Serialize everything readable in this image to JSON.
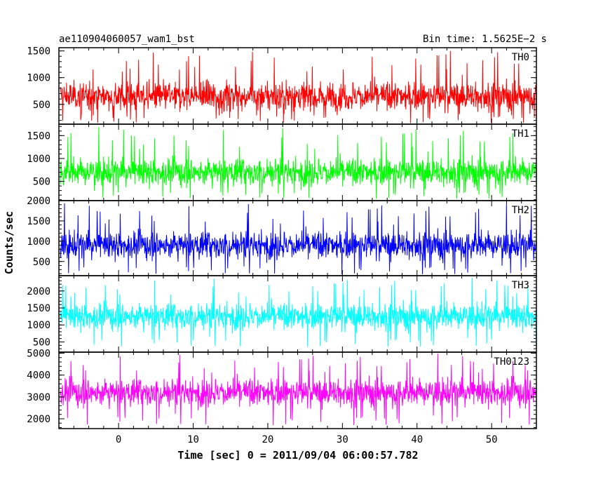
{
  "header": {
    "title": "ae110904060057_wam1_bst",
    "bin_time": "Bin time: 1.5625E−2 s"
  },
  "chart_data": {
    "type": "line",
    "title": "ae110904060057_wam1_bst",
    "xlabel": "Time [sec] 0 = 2011/09/04 06:00:57.782",
    "ylabel": "Counts/sec",
    "xlim": [
      -8,
      56
    ],
    "x_ticks": [
      0,
      10,
      20,
      30,
      40,
      50
    ],
    "x_tick_labels": [
      "0",
      "10",
      "20",
      "30",
      "40",
      "50"
    ],
    "x_data_range": [
      -7.8,
      56.0
    ],
    "grid": false,
    "panels": [
      {
        "name": "TH0",
        "color": "#ff0000",
        "ylim": [
          130,
          1560
        ],
        "y_ticks": [
          500,
          1000,
          1500
        ],
        "y_tick_labels": [
          "500",
          "1000",
          "1500"
        ],
        "mean": 650,
        "min": 150,
        "max": 1560
      },
      {
        "name": "TH1",
        "color": "#00ff00",
        "ylim": [
          80,
          1750
        ],
        "y_ticks": [
          500,
          1000,
          1500
        ],
        "y_tick_labels": [
          "500",
          "1000",
          "1500"
        ],
        "mean": 700,
        "min": 120,
        "max": 1700
      },
      {
        "name": "TH2",
        "color": "#0000ff",
        "ylim": [
          150,
          2000
        ],
        "y_ticks": [
          500,
          1000,
          1500,
          2000
        ],
        "y_tick_labels": [
          "500",
          "1000",
          "1500",
          "2000"
        ],
        "mean": 900,
        "min": 180,
        "max": 1950
      },
      {
        "name": "TH3",
        "color": "#00ffff",
        "ylim": [
          200,
          2450
        ],
        "y_ticks": [
          500,
          1000,
          1500,
          2000
        ],
        "y_tick_labels": [
          "500",
          "1000",
          "1500",
          "2000"
        ],
        "mean": 1250,
        "min": 350,
        "max": 2400
      },
      {
        "name": "TH0123",
        "color": "#ff00ff",
        "ylim": [
          1550,
          5050
        ],
        "y_ticks": [
          2000,
          3000,
          4000,
          5000
        ],
        "y_tick_labels": [
          "2000",
          "3000",
          "4000",
          "5000"
        ],
        "mean": 3200,
        "min": 1700,
        "max": 5000
      }
    ]
  }
}
